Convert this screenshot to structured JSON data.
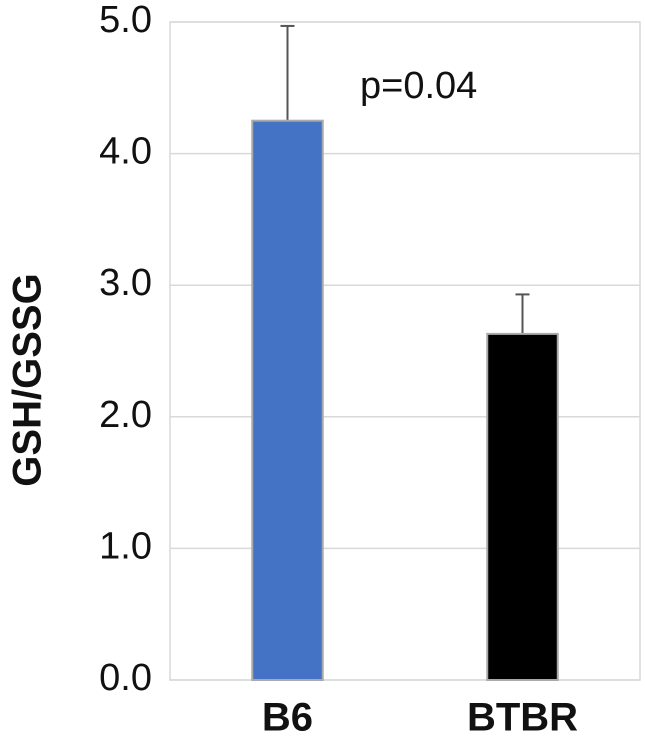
{
  "chart_data": {
    "type": "bar",
    "ylabel": "GSH/GSSG",
    "annotation": "p=0.04",
    "categories": [
      "B6",
      "BTBR"
    ],
    "values": [
      4.25,
      2.63
    ],
    "errors": [
      0.72,
      0.3
    ],
    "colors": [
      "#4472c4",
      "#000000"
    ],
    "ylim": [
      0,
      5
    ],
    "yticks": [
      {
        "value": 0,
        "label": "0.0"
      },
      {
        "value": 1,
        "label": "1.0"
      },
      {
        "value": 2,
        "label": "2.0"
      },
      {
        "value": 3,
        "label": "3.0"
      },
      {
        "value": 4,
        "label": "4.0"
      },
      {
        "value": 5,
        "label": "5.0"
      }
    ],
    "grid": true
  }
}
